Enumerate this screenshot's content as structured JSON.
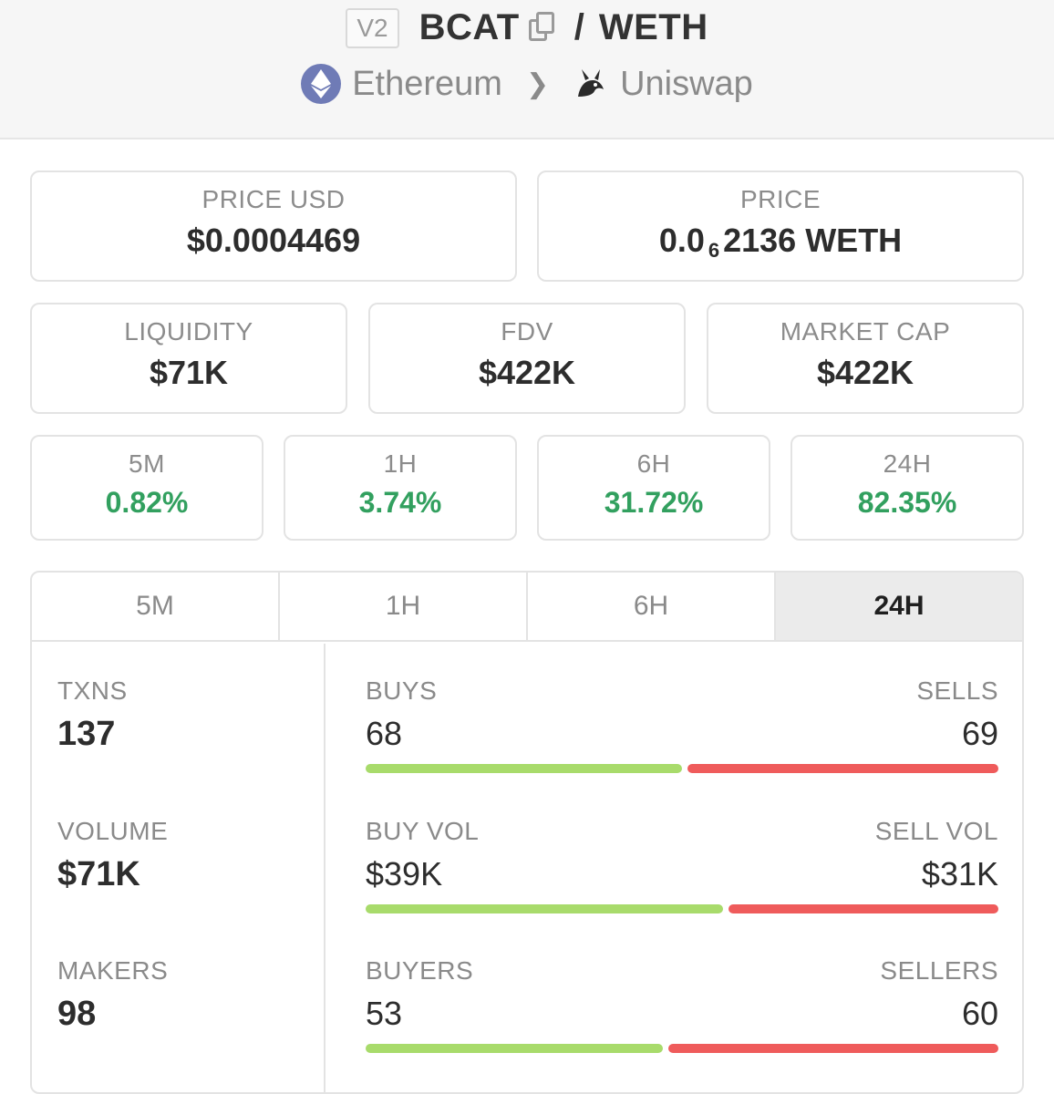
{
  "header": {
    "version_badge": "V2",
    "base_token": "BCAT",
    "separator": "/",
    "quote_token": "WETH",
    "chain": "Ethereum",
    "dex": "Uniswap"
  },
  "price_usd": {
    "label": "PRICE USD",
    "value": "$0.0004469"
  },
  "price": {
    "label": "PRICE",
    "value_prefix": "0.0",
    "value_sub": "6",
    "value_suffix": "2136 WETH"
  },
  "metrics": [
    {
      "label": "LIQUIDITY",
      "value": "$71K"
    },
    {
      "label": "FDV",
      "value": "$422K"
    },
    {
      "label": "MARKET CAP",
      "value": "$422K"
    }
  ],
  "changes": [
    {
      "label": "5M",
      "value": "0.82%"
    },
    {
      "label": "1H",
      "value": "3.74%"
    },
    {
      "label": "6H",
      "value": "31.72%"
    },
    {
      "label": "24H",
      "value": "82.35%"
    }
  ],
  "colors": {
    "positive": "#32a05f",
    "buy_bar": "#a8db6b",
    "sell_bar": "#ef5b5b"
  },
  "tabs": [
    {
      "label": "5M",
      "active": false
    },
    {
      "label": "1H",
      "active": false
    },
    {
      "label": "6H",
      "active": false
    },
    {
      "label": "24H",
      "active": true
    }
  ],
  "stats": {
    "txns": {
      "label": "TXNS",
      "value": "137"
    },
    "volume": {
      "label": "VOLUME",
      "value": "$71K"
    },
    "makers": {
      "label": "MAKERS",
      "value": "98"
    }
  },
  "splits": {
    "trades": {
      "left_label": "BUYS",
      "right_label": "SELLS",
      "left_value": "68",
      "right_value": "69",
      "buy_fraction": 0.5
    },
    "volume": {
      "left_label": "BUY VOL",
      "right_label": "SELL VOL",
      "left_value": "$39K",
      "right_value": "$31K",
      "buy_fraction": 0.565
    },
    "traders": {
      "left_label": "BUYERS",
      "right_label": "SELLERS",
      "left_value": "53",
      "right_value": "60",
      "buy_fraction": 0.47
    }
  }
}
